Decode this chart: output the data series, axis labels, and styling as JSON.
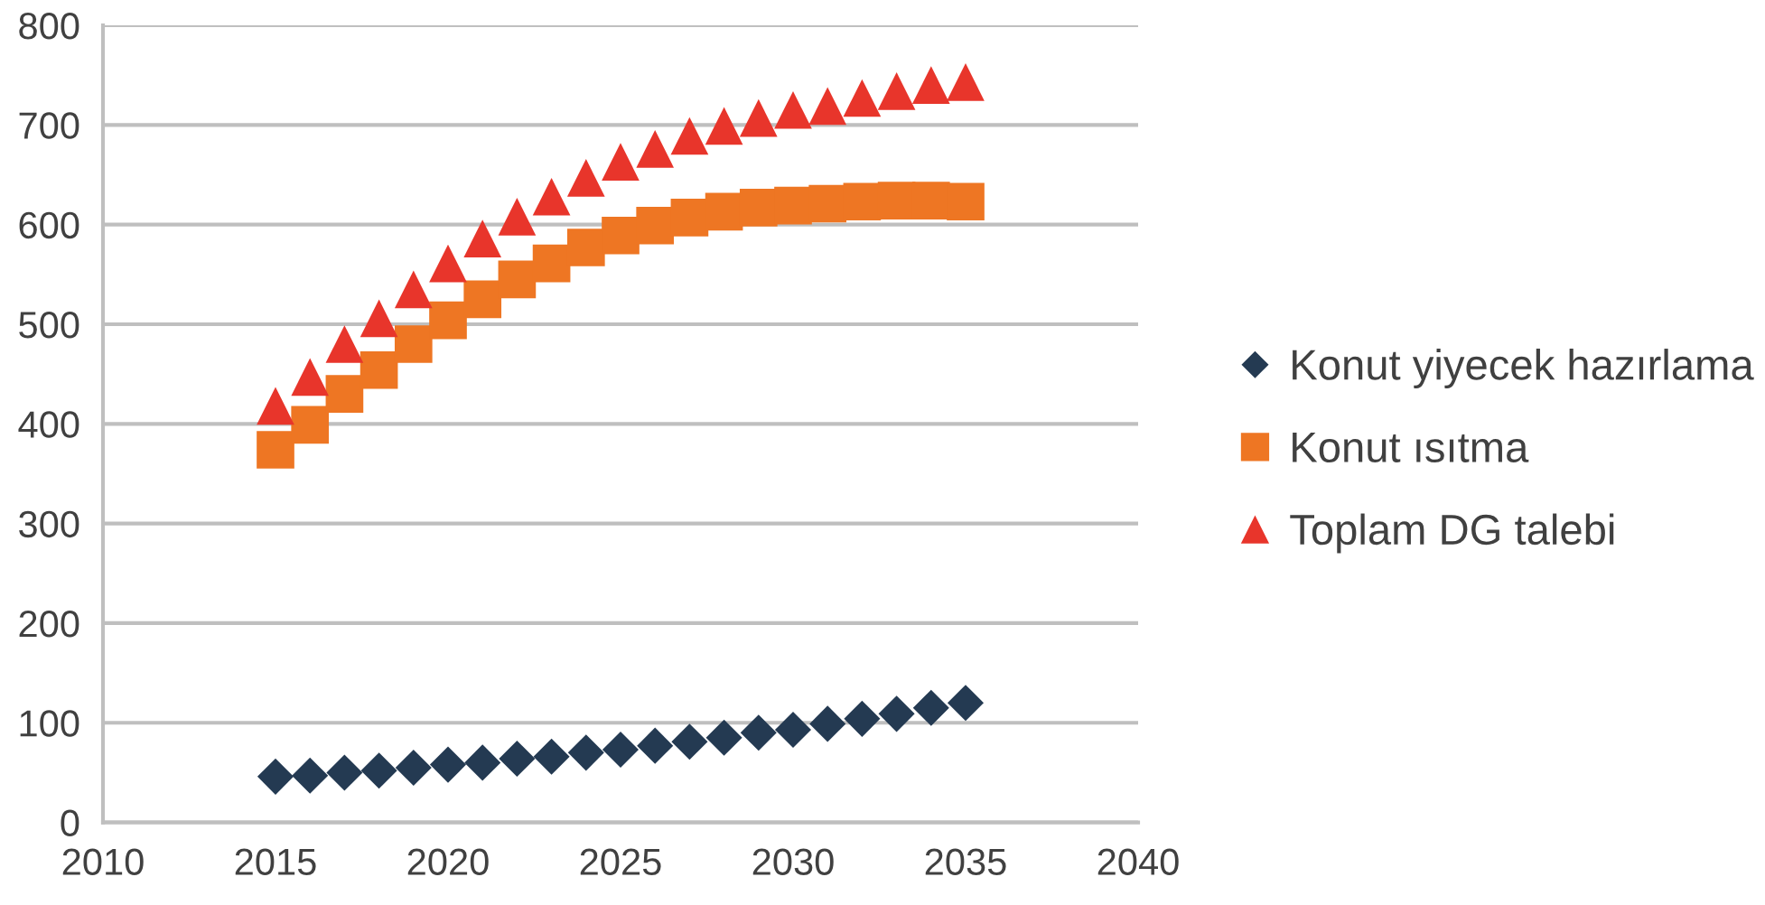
{
  "chart_data": {
    "type": "scatter",
    "x": [
      2015,
      2016,
      2017,
      2018,
      2019,
      2020,
      2021,
      2022,
      2023,
      2024,
      2025,
      2026,
      2027,
      2028,
      2029,
      2030,
      2031,
      2032,
      2033,
      2034,
      2035
    ],
    "series": [
      {
        "name": "Konut yiyecek hazırlama",
        "color": "#243a52",
        "marker": "diamond",
        "values": [
          46,
          47,
          50,
          52,
          55,
          58,
          60,
          64,
          66,
          70,
          73,
          77,
          81,
          85,
          90,
          93,
          99,
          104,
          109,
          115,
          120
        ]
      },
      {
        "name": "Konut ısıtma",
        "color": "#ee7623",
        "marker": "square",
        "values": [
          374,
          399,
          430,
          454,
          480,
          504,
          525,
          545,
          561,
          577,
          589,
          599,
          607,
          613,
          617,
          619,
          621,
          623,
          624,
          624,
          623
        ]
      },
      {
        "name": "Toplam DG talebi",
        "color": "#e8352b",
        "marker": "triangle",
        "values": [
          418,
          447,
          480,
          506,
          535,
          561,
          586,
          608,
          628,
          647,
          663,
          676,
          689,
          699,
          707,
          715,
          719,
          727,
          734,
          740,
          743
        ]
      }
    ],
    "xlim": [
      2010,
      2040
    ],
    "xticks": [
      2010,
      2015,
      2020,
      2025,
      2030,
      2035,
      2040
    ],
    "ylim": [
      0,
      800
    ],
    "yticks": [
      0,
      100,
      200,
      300,
      400,
      500,
      600,
      700,
      800
    ],
    "grid": "y",
    "legend": "right"
  }
}
